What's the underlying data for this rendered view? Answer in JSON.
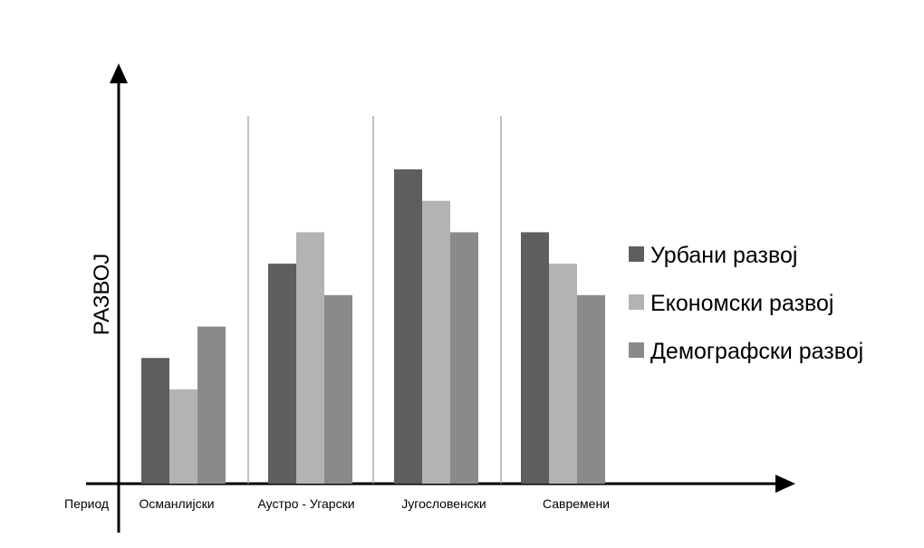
{
  "chart_data": {
    "type": "bar",
    "title": "",
    "ylabel": "РАЗВОЈ",
    "xlabel": "Период",
    "categories": [
      "Османлијски",
      "Аустро - Угарски",
      "Југословенски",
      "Савремени"
    ],
    "series": [
      {
        "name": "Урбани развој",
        "color": "#5e5e5e",
        "values": [
          4,
          7,
          10,
          8
        ]
      },
      {
        "name": "Економски развој",
        "color": "#b3b3b3",
        "values": [
          3,
          8,
          9,
          7
        ]
      },
      {
        "name": "Демографски развој",
        "color": "#8a8a8a",
        "values": [
          5,
          6,
          8,
          6
        ]
      }
    ],
    "ylim": [
      0,
      12
    ],
    "grid": false,
    "legend_position": "right"
  }
}
